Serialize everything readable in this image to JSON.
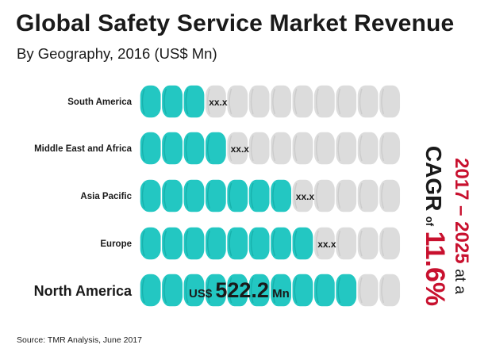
{
  "header": {
    "title": "Global Safety Service Market Revenue",
    "subtitle": "By Geography, 2016 (US$ Mn)"
  },
  "colors": {
    "filled": "#23c7c2",
    "filled_edge": "#13a9a4",
    "empty": "#dcdcdc",
    "empty_edge": "#c4c4c4",
    "accent": "#c8102e",
    "text": "#1a1a1a"
  },
  "chart_data": {
    "type": "bar",
    "title": "Global Safety Service Market Revenue",
    "subtitle": "By Geography, 2016 (US$ Mn)",
    "categories": [
      "South America",
      "Middle East and Africa",
      "Asia Pacific",
      "Europe",
      "North America"
    ],
    "values": [
      "xx.x",
      "xx.x",
      "xx.x",
      "xx.x",
      "522.2"
    ],
    "segments_total": 12,
    "filled_segments": [
      3,
      4,
      7,
      8,
      10
    ],
    "highlight": {
      "category": "North America",
      "prefix": "US$",
      "value": "522.2",
      "unit": "Mn"
    }
  },
  "cagr": {
    "period": "2017 – 2025",
    "at": "at a",
    "label": "CAGR",
    "of": "of",
    "rate": "11.6%"
  },
  "footer": {
    "source": "Source:  TMR Analysis, June 2017"
  }
}
